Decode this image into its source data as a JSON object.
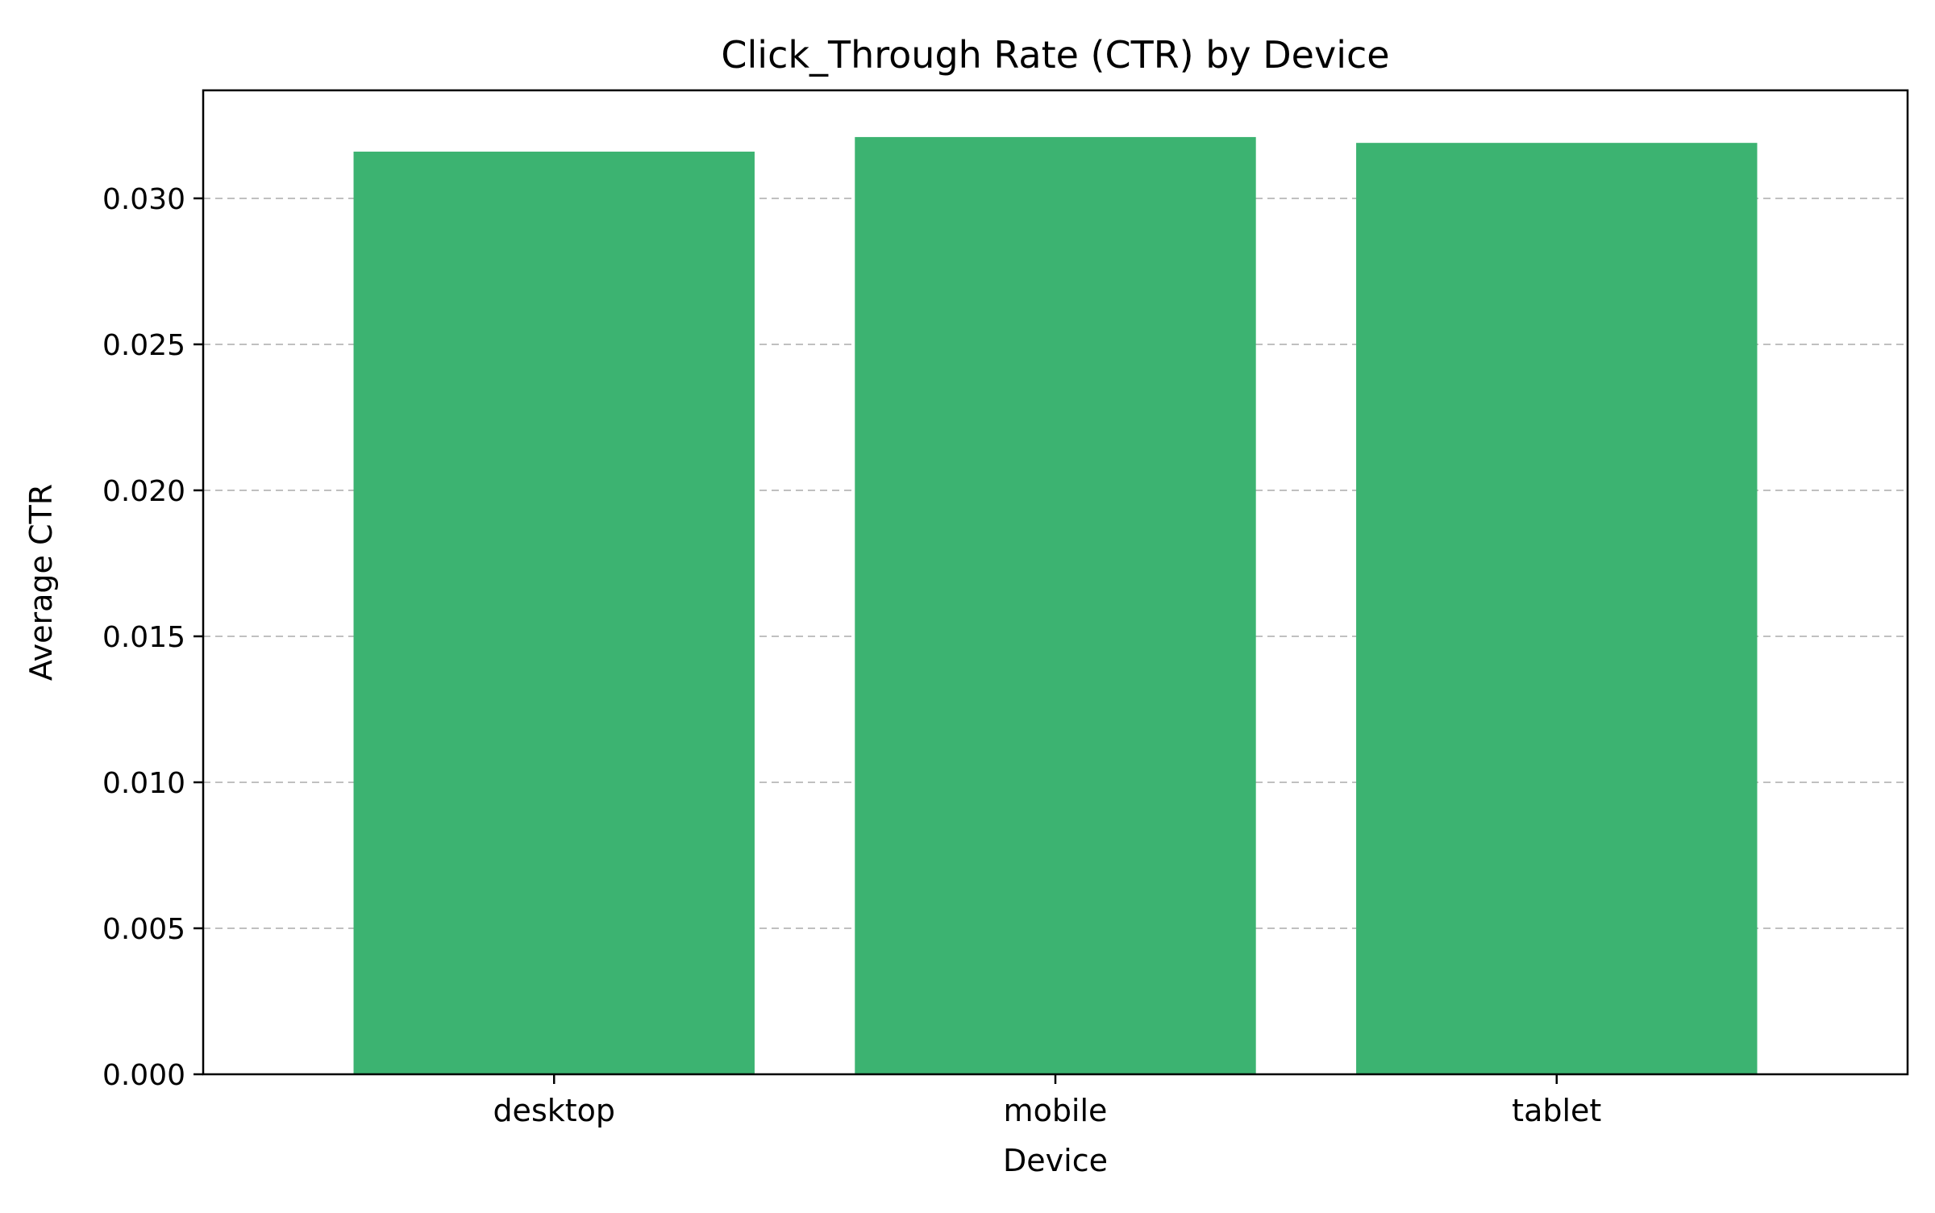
{
  "chart_data": {
    "type": "bar",
    "title": "Click_Through Rate (CTR) by Device",
    "xlabel": "Device",
    "ylabel": "Average CTR",
    "categories": [
      "desktop",
      "mobile",
      "tablet"
    ],
    "values": [
      0.0316,
      0.0321,
      0.0319
    ],
    "ylim": [
      0,
      0.0337
    ],
    "yticks": [
      0.0,
      0.005,
      0.01,
      0.015,
      0.02,
      0.025,
      0.03
    ],
    "ytick_labels": [
      "0.000",
      "0.005",
      "0.010",
      "0.015",
      "0.020",
      "0.025",
      "0.030"
    ],
    "grid": "y-dashed",
    "bar_color": "#3cb371",
    "grid_color": "#c0c0c0"
  }
}
